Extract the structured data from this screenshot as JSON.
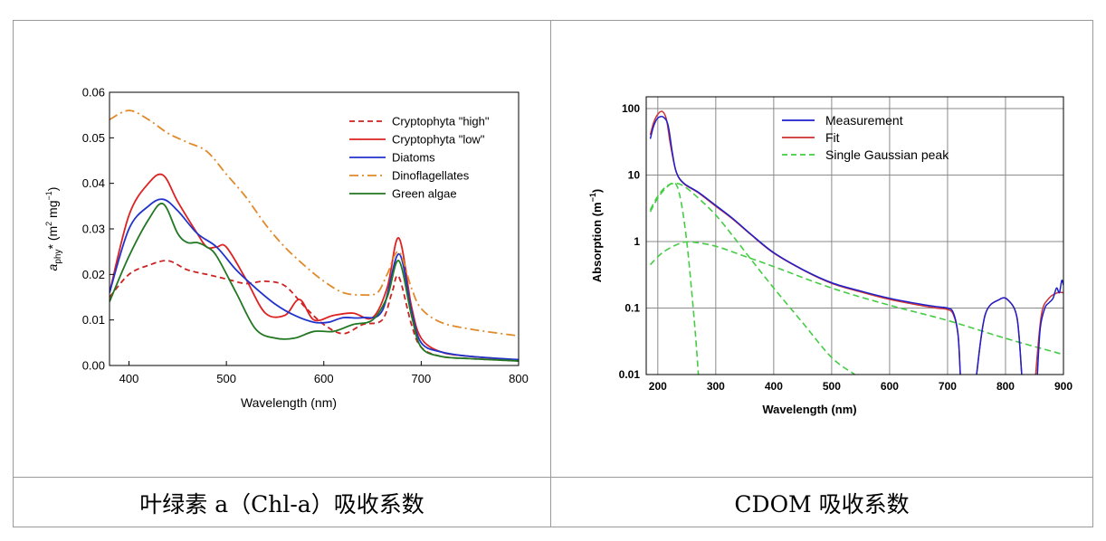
{
  "captions": {
    "left": "叶绿素 a（Chl-a）吸收系数",
    "right": "CDOM 吸收系数"
  },
  "chart_data": [
    {
      "type": "line",
      "xlabel": "Wavelength (nm)",
      "ylabel": {
        "var": "a",
        "sub": "phy",
        "star": "*",
        "units_pre": " (m",
        "units_mid": " mg",
        "units_post": ")",
        "sup1": "2",
        "sup2": "−1"
      },
      "xlim": [
        380,
        800
      ],
      "ylim": [
        0,
        0.06
      ],
      "xticks": [
        400,
        500,
        600,
        700,
        800
      ],
      "yticks": [
        0.0,
        0.01,
        0.02,
        0.03,
        0.04,
        0.05,
        0.06
      ],
      "ytick_labels": [
        "0.00",
        "0.01",
        "0.02",
        "0.03",
        "0.04",
        "0.05",
        "0.06"
      ],
      "grid": false,
      "legend_position": "top-right",
      "series": [
        {
          "name": "Cryptophyta \"high\"",
          "color": "#cc2222",
          "dash": "dashed",
          "points": [
            [
              380,
              0.015
            ],
            [
              400,
              0.02
            ],
            [
              420,
              0.022
            ],
            [
              440,
              0.023
            ],
            [
              460,
              0.021
            ],
            [
              480,
              0.02
            ],
            [
              500,
              0.019
            ],
            [
              520,
              0.018
            ],
            [
              540,
              0.0185
            ],
            [
              560,
              0.0175
            ],
            [
              580,
              0.013
            ],
            [
              600,
              0.009
            ],
            [
              620,
              0.007
            ],
            [
              640,
              0.009
            ],
            [
              660,
              0.01
            ],
            [
              670,
              0.016
            ],
            [
              677,
              0.0195
            ],
            [
              690,
              0.009
            ],
            [
              700,
              0.004
            ],
            [
              720,
              0.002
            ],
            [
              750,
              0.0015
            ],
            [
              800,
              0.001
            ]
          ]
        },
        {
          "name": "Cryptophyta \"low\"",
          "color": "#dd2222",
          "dash": "solid",
          "points": [
            [
              380,
              0.016
            ],
            [
              400,
              0.033
            ],
            [
              420,
              0.04
            ],
            [
              435,
              0.0418
            ],
            [
              450,
              0.036
            ],
            [
              470,
              0.029
            ],
            [
              480,
              0.026
            ],
            [
              490,
              0.026
            ],
            [
              500,
              0.026
            ],
            [
              520,
              0.019
            ],
            [
              540,
              0.0115
            ],
            [
              560,
              0.011
            ],
            [
              575,
              0.0145
            ],
            [
              590,
              0.01
            ],
            [
              610,
              0.011
            ],
            [
              630,
              0.0115
            ],
            [
              650,
              0.0105
            ],
            [
              665,
              0.017
            ],
            [
              677,
              0.028
            ],
            [
              690,
              0.013
            ],
            [
              700,
              0.006
            ],
            [
              720,
              0.003
            ],
            [
              750,
              0.002
            ],
            [
              800,
              0.0012
            ]
          ]
        },
        {
          "name": "Diatoms",
          "color": "#2233cc",
          "dash": "solid",
          "points": [
            [
              380,
              0.016
            ],
            [
              400,
              0.03
            ],
            [
              420,
              0.035
            ],
            [
              435,
              0.0365
            ],
            [
              450,
              0.034
            ],
            [
              470,
              0.029
            ],
            [
              490,
              0.026
            ],
            [
              510,
              0.021
            ],
            [
              530,
              0.017
            ],
            [
              550,
              0.0135
            ],
            [
              570,
              0.011
            ],
            [
              590,
              0.0095
            ],
            [
              605,
              0.0095
            ],
            [
              620,
              0.0105
            ],
            [
              640,
              0.0105
            ],
            [
              660,
              0.012
            ],
            [
              677,
              0.0245
            ],
            [
              690,
              0.012
            ],
            [
              700,
              0.005
            ],
            [
              720,
              0.003
            ],
            [
              750,
              0.002
            ],
            [
              800,
              0.0013
            ]
          ]
        },
        {
          "name": "Dinoflagellates",
          "color": "#e08a2a",
          "dash": "dashdot",
          "points": [
            [
              380,
              0.054
            ],
            [
              400,
              0.056
            ],
            [
              420,
              0.054
            ],
            [
              440,
              0.051
            ],
            [
              460,
              0.049
            ],
            [
              480,
              0.047
            ],
            [
              500,
              0.042
            ],
            [
              520,
              0.037
            ],
            [
              540,
              0.031
            ],
            [
              560,
              0.026
            ],
            [
              580,
              0.022
            ],
            [
              600,
              0.0185
            ],
            [
              620,
              0.016
            ],
            [
              640,
              0.0155
            ],
            [
              655,
              0.016
            ],
            [
              665,
              0.02
            ],
            [
              677,
              0.025
            ],
            [
              690,
              0.017
            ],
            [
              700,
              0.0125
            ],
            [
              720,
              0.0095
            ],
            [
              750,
              0.008
            ],
            [
              800,
              0.0065
            ]
          ]
        },
        {
          "name": "Green algae",
          "color": "#227722",
          "dash": "solid",
          "points": [
            [
              380,
              0.014
            ],
            [
              400,
              0.024
            ],
            [
              420,
              0.032
            ],
            [
              435,
              0.0355
            ],
            [
              450,
              0.029
            ],
            [
              460,
              0.027
            ],
            [
              470,
              0.027
            ],
            [
              480,
              0.026
            ],
            [
              490,
              0.024
            ],
            [
              510,
              0.016
            ],
            [
              530,
              0.008
            ],
            [
              550,
              0.006
            ],
            [
              570,
              0.006
            ],
            [
              590,
              0.0075
            ],
            [
              610,
              0.0075
            ],
            [
              630,
              0.009
            ],
            [
              650,
              0.01
            ],
            [
              665,
              0.015
            ],
            [
              677,
              0.023
            ],
            [
              690,
              0.011
            ],
            [
              700,
              0.004
            ],
            [
              720,
              0.002
            ],
            [
              750,
              0.0015
            ],
            [
              800,
              0.001
            ]
          ]
        }
      ]
    },
    {
      "type": "line",
      "xlabel": "Wavelength (nm)",
      "ylabel": {
        "text": "Absorption (m",
        "sup": "−1",
        "post": ")"
      },
      "xlim": [
        180,
        900
      ],
      "ylim": [
        0.01,
        150
      ],
      "yscale": "log",
      "xticks": [
        200,
        300,
        400,
        500,
        600,
        700,
        800,
        900
      ],
      "yticks": [
        0.01,
        0.1,
        1,
        10,
        100
      ],
      "ytick_labels": [
        "0.01",
        "0.1",
        "1",
        "10",
        "100"
      ],
      "grid": true,
      "legend_position": "top-center",
      "series": [
        {
          "name": "Measurement",
          "color": "#1f1fcc",
          "dash": "solid",
          "points": [
            [
              187,
              35
            ],
            [
              193,
              55
            ],
            [
              200,
              72
            ],
            [
              210,
              74
            ],
            [
              218,
              55
            ],
            [
              225,
              22
            ],
            [
              232,
              11
            ],
            [
              245,
              7.5
            ],
            [
              270,
              5.5
            ],
            [
              300,
              3.5
            ],
            [
              330,
              2.2
            ],
            [
              360,
              1.3
            ],
            [
              400,
              0.68
            ],
            [
              450,
              0.38
            ],
            [
              500,
              0.24
            ],
            [
              550,
              0.18
            ],
            [
              600,
              0.14
            ],
            [
              640,
              0.12
            ],
            [
              680,
              0.105
            ],
            [
              700,
              0.1
            ],
            [
              710,
              0.085
            ],
            [
              718,
              0.04
            ],
            [
              722,
              0.01
            ]
          ]
        },
        {
          "name": "Fit",
          "color": "#cc3333",
          "dash": "solid",
          "points": [
            [
              187,
              40
            ],
            [
              193,
              62
            ],
            [
              200,
              82
            ],
            [
              208,
              90
            ],
            [
              215,
              68
            ],
            [
              222,
              28
            ],
            [
              232,
              11
            ],
            [
              245,
              7.4
            ],
            [
              270,
              5.4
            ],
            [
              300,
              3.4
            ],
            [
              330,
              2.15
            ],
            [
              360,
              1.28
            ],
            [
              400,
              0.67
            ],
            [
              450,
              0.375
            ],
            [
              500,
              0.235
            ],
            [
              550,
              0.175
            ],
            [
              600,
              0.135
            ],
            [
              640,
              0.115
            ],
            [
              680,
              0.1
            ],
            [
              700,
              0.095
            ],
            [
              710,
              0.08
            ],
            [
              718,
              0.04
            ],
            [
              722,
              0.01
            ]
          ]
        },
        {
          "name": "Single Gaussian peak",
          "color": "#44cc44",
          "dash": "dashed",
          "points": [
            [
              187,
              3
            ],
            [
              200,
              4.8
            ],
            [
              215,
              6.8
            ],
            [
              230,
              7.5
            ],
            [
              245,
              6.8
            ],
            [
              270,
              4.5
            ],
            [
              300,
              2.5
            ],
            [
              330,
              1.2
            ],
            [
              360,
              0.55
            ],
            [
              400,
              0.2
            ],
            [
              450,
              0.06
            ],
            [
              500,
              0.018
            ],
            [
              540,
              0.01
            ]
          ]
        }
      ]
    }
  ]
}
